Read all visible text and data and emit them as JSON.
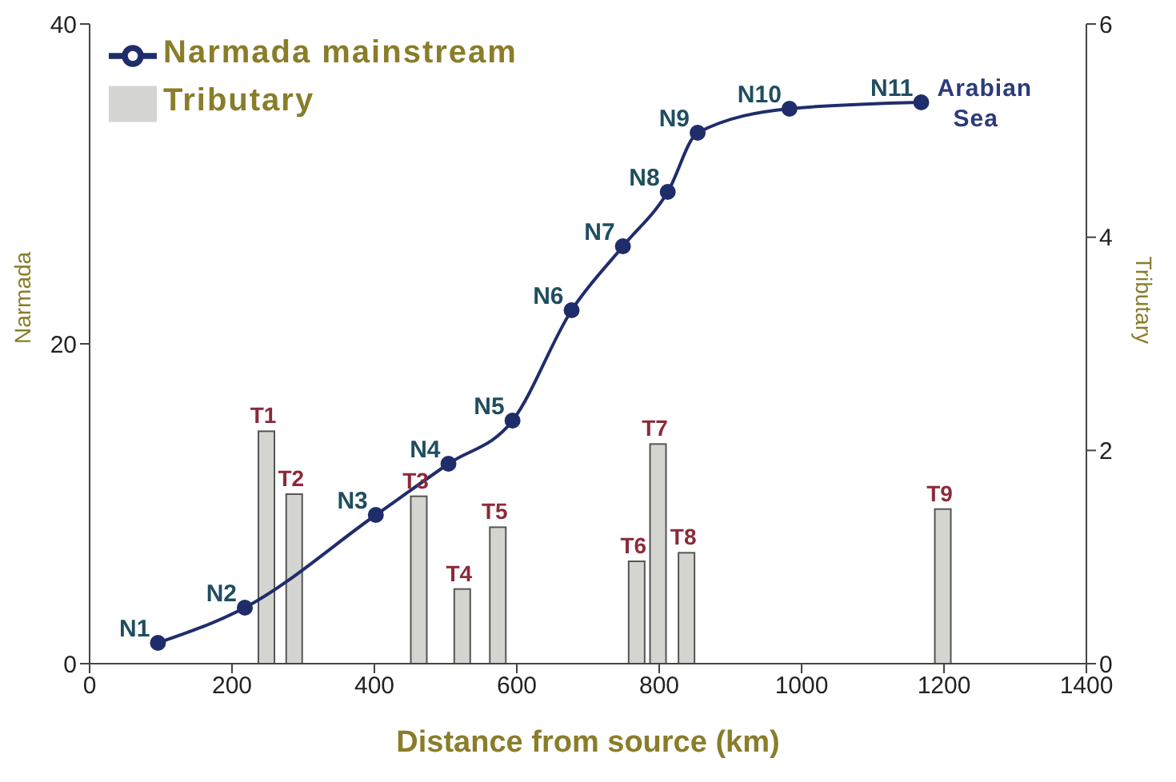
{
  "chart_data": {
    "type": "line",
    "xlabel": "Distance from source (km)",
    "ylabel": "Narmada",
    "y2label": "Tributary",
    "xlim": [
      0,
      1400
    ],
    "xticks": [
      0,
      200,
      400,
      600,
      800,
      1000,
      1200,
      1400
    ],
    "ylim": [
      0,
      40
    ],
    "yticks": [
      0,
      20,
      40
    ],
    "y2lim": [
      0,
      6
    ],
    "y2ticks": [
      0,
      2,
      4,
      6
    ],
    "series": [
      {
        "name": "Narmada mainstream",
        "color": "#1f2d6b",
        "marker": "circle",
        "x": [
          96,
          218,
          402,
          504,
          594,
          677,
          749,
          812,
          854,
          983,
          1168
        ],
        "values": [
          1.3,
          3.5,
          9.3,
          12.5,
          15.2,
          22.1,
          26.1,
          29.5,
          33.2,
          34.7,
          35.1
        ],
        "value_labels": [
          "N1",
          "N2",
          "N3",
          "N4",
          "N5",
          "N6",
          "N7",
          "N8",
          "N9",
          "N10",
          "N11"
        ]
      },
      {
        "name": "Tributary",
        "type": "bar",
        "axis": "y2",
        "color": "#d4d4d0",
        "x": [
          249,
          288,
          463,
          524,
          574,
          769,
          799,
          839,
          1199
        ],
        "values": [
          2.18,
          1.59,
          1.57,
          0.7,
          1.28,
          0.96,
          2.06,
          1.04,
          1.45
        ],
        "value_labels": [
          "T1",
          "T2",
          "T3",
          "T4",
          "T5",
          "T6",
          "T7",
          "T8",
          "T9"
        ]
      }
    ],
    "annotations": [
      {
        "text": "Arabian Sea",
        "x": 1168,
        "y": 35.1
      }
    ],
    "legend": "top left",
    "grid": false
  }
}
